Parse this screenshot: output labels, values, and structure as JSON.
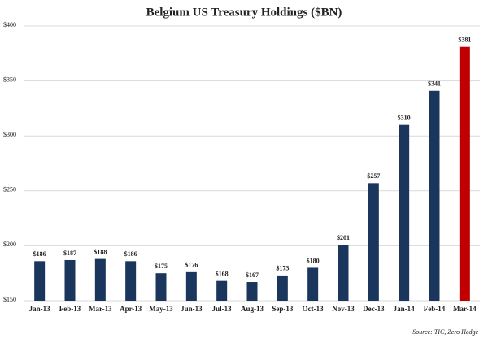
{
  "chart_data": {
    "type": "bar",
    "title": "Belgium US Treasury Holdings ($BN)",
    "categories": [
      "Jan-13",
      "Feb-13",
      "Mar-13",
      "Apr-13",
      "May-13",
      "Jun-13",
      "Jul-13",
      "Aug-13",
      "Sep-13",
      "Oct-13",
      "Nov-13",
      "Dec-13",
      "Jan-14",
      "Feb-14",
      "Mar-14"
    ],
    "values": [
      186,
      187,
      188,
      186,
      175,
      176,
      168,
      167,
      173,
      180,
      201,
      257,
      310,
      341,
      381
    ],
    "value_labels": [
      "$186",
      "$187",
      "$188",
      "$186",
      "$175",
      "$176",
      "$168",
      "$167",
      "$173",
      "$180",
      "$201",
      "$257",
      "$310",
      "$341",
      "$381"
    ],
    "colors": [
      "#1b365d",
      "#1b365d",
      "#1b365d",
      "#1b365d",
      "#1b365d",
      "#1b365d",
      "#1b365d",
      "#1b365d",
      "#1b365d",
      "#1b365d",
      "#1b365d",
      "#1b365d",
      "#1b365d",
      "#1b365d",
      "#c00000"
    ],
    "ylim": [
      150,
      400
    ],
    "yticks": [
      {
        "value": 150,
        "label": "$150"
      },
      {
        "value": 200,
        "label": "$200"
      },
      {
        "value": 250,
        "label": "$250"
      },
      {
        "value": 300,
        "label": "$300"
      },
      {
        "value": 350,
        "label": "$350"
      },
      {
        "value": 400,
        "label": "$400"
      }
    ],
    "grid": true,
    "source": "Source: TIC, Zero Hedge"
  }
}
